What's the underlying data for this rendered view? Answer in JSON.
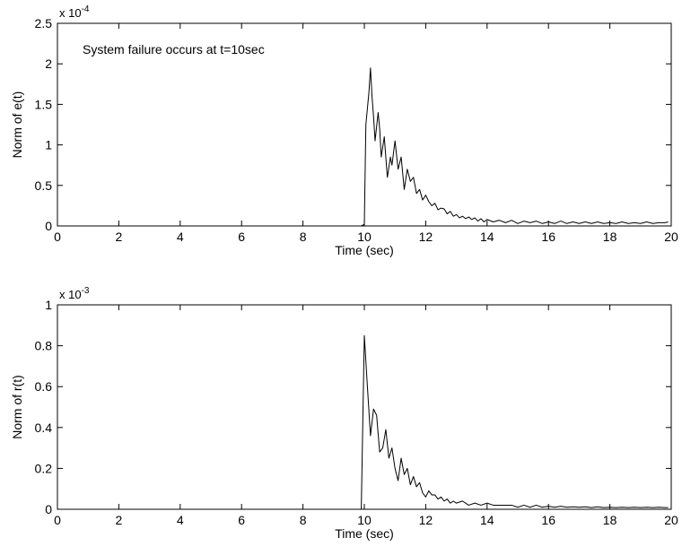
{
  "chart_data": [
    {
      "type": "line",
      "xlabel": "Time (sec)",
      "ylabel": "Norm of e(t)",
      "multiplier_base": "x 10",
      "multiplier_exp": "-4",
      "annotation": "System failure occurs at t=10sec",
      "xlim": [
        0,
        20
      ],
      "ylim": [
        0,
        2.5
      ],
      "xticks": [
        "0",
        "2",
        "4",
        "6",
        "8",
        "10",
        "12",
        "14",
        "16",
        "18",
        "20"
      ],
      "yticks": [
        "0",
        "0.5",
        "1",
        "1.5",
        "2",
        "2.5"
      ],
      "grid": false,
      "line_color": "#000000",
      "series": [
        {
          "x": [
            0,
            9.9,
            10.0,
            10.05,
            10.15,
            10.2,
            10.25,
            10.3,
            10.35,
            10.45,
            10.5,
            10.55,
            10.65,
            10.75,
            10.85,
            10.9,
            11.0,
            11.1,
            11.2,
            11.3,
            11.4,
            11.5,
            11.6,
            11.7,
            11.8,
            11.9,
            12.0,
            12.1,
            12.2,
            12.3,
            12.4,
            12.5,
            12.6,
            12.7,
            12.8,
            12.9,
            13.0,
            13.1,
            13.2,
            13.3,
            13.4,
            13.5,
            13.6,
            13.7,
            13.8,
            13.9,
            14.0,
            14.2,
            14.4,
            14.6,
            14.8,
            15.0,
            15.2,
            15.4,
            15.6,
            15.8,
            16.0,
            16.2,
            16.4,
            16.6,
            16.8,
            17.0,
            17.2,
            17.4,
            17.6,
            17.8,
            18.0,
            18.2,
            18.4,
            18.6,
            18.8,
            19.0,
            19.2,
            19.4,
            19.6,
            19.8,
            19.9
          ],
          "values": [
            0,
            0,
            0.02,
            1.25,
            1.65,
            1.95,
            1.6,
            1.35,
            1.05,
            1.4,
            1.2,
            0.85,
            1.1,
            0.6,
            0.85,
            0.75,
            1.05,
            0.7,
            0.85,
            0.45,
            0.7,
            0.55,
            0.6,
            0.4,
            0.45,
            0.32,
            0.38,
            0.3,
            0.25,
            0.28,
            0.2,
            0.22,
            0.21,
            0.15,
            0.18,
            0.12,
            0.14,
            0.1,
            0.12,
            0.09,
            0.11,
            0.08,
            0.1,
            0.06,
            0.09,
            0.05,
            0.08,
            0.05,
            0.07,
            0.04,
            0.07,
            0.03,
            0.06,
            0.04,
            0.06,
            0.03,
            0.05,
            0.03,
            0.06,
            0.03,
            0.05,
            0.03,
            0.05,
            0.03,
            0.05,
            0.03,
            0.04,
            0.03,
            0.05,
            0.03,
            0.04,
            0.03,
            0.05,
            0.03,
            0.04,
            0.04,
            0.05
          ]
        }
      ]
    },
    {
      "type": "line",
      "xlabel": "Time (sec)",
      "ylabel": "Norm of r(t)",
      "multiplier_base": "x 10",
      "multiplier_exp": "-3",
      "xlim": [
        0,
        20
      ],
      "ylim": [
        0,
        1
      ],
      "xticks": [
        "0",
        "2",
        "4",
        "6",
        "8",
        "10",
        "12",
        "14",
        "16",
        "18",
        "20"
      ],
      "yticks": [
        "0",
        "0.2",
        "0.4",
        "0.6",
        "0.8",
        "1"
      ],
      "grid": false,
      "line_color": "#000000",
      "series": [
        {
          "x": [
            0,
            9.9,
            10.0,
            10.1,
            10.2,
            10.3,
            10.4,
            10.5,
            10.6,
            10.7,
            10.8,
            10.9,
            11.0,
            11.1,
            11.2,
            11.3,
            11.4,
            11.5,
            11.6,
            11.7,
            11.8,
            11.9,
            12.0,
            12.1,
            12.2,
            12.3,
            12.4,
            12.5,
            12.6,
            12.7,
            12.8,
            12.9,
            13.0,
            13.2,
            13.4,
            13.6,
            13.8,
            14.0,
            14.2,
            14.4,
            14.6,
            14.8,
            15.0,
            15.2,
            15.4,
            15.6,
            15.8,
            16.0,
            16.2,
            16.4,
            16.6,
            16.8,
            17.0,
            17.2,
            17.4,
            17.6,
            17.8,
            18.0,
            18.2,
            18.4,
            18.6,
            18.8,
            19.0,
            19.2,
            19.4,
            19.6,
            19.8,
            19.9
          ],
          "values": [
            0,
            0,
            0.85,
            0.6,
            0.36,
            0.49,
            0.46,
            0.28,
            0.3,
            0.39,
            0.25,
            0.3,
            0.2,
            0.14,
            0.25,
            0.17,
            0.2,
            0.12,
            0.16,
            0.11,
            0.13,
            0.08,
            0.06,
            0.09,
            0.07,
            0.07,
            0.05,
            0.06,
            0.04,
            0.05,
            0.03,
            0.04,
            0.03,
            0.04,
            0.02,
            0.03,
            0.02,
            0.03,
            0.02,
            0.02,
            0.02,
            0.02,
            0.01,
            0.02,
            0.01,
            0.02,
            0.01,
            0.015,
            0.01,
            0.015,
            0.01,
            0.012,
            0.01,
            0.012,
            0.008,
            0.012,
            0.008,
            0.01,
            0.008,
            0.01,
            0.008,
            0.01,
            0.008,
            0.01,
            0.008,
            0.01,
            0.008,
            0.008
          ]
        }
      ]
    }
  ]
}
